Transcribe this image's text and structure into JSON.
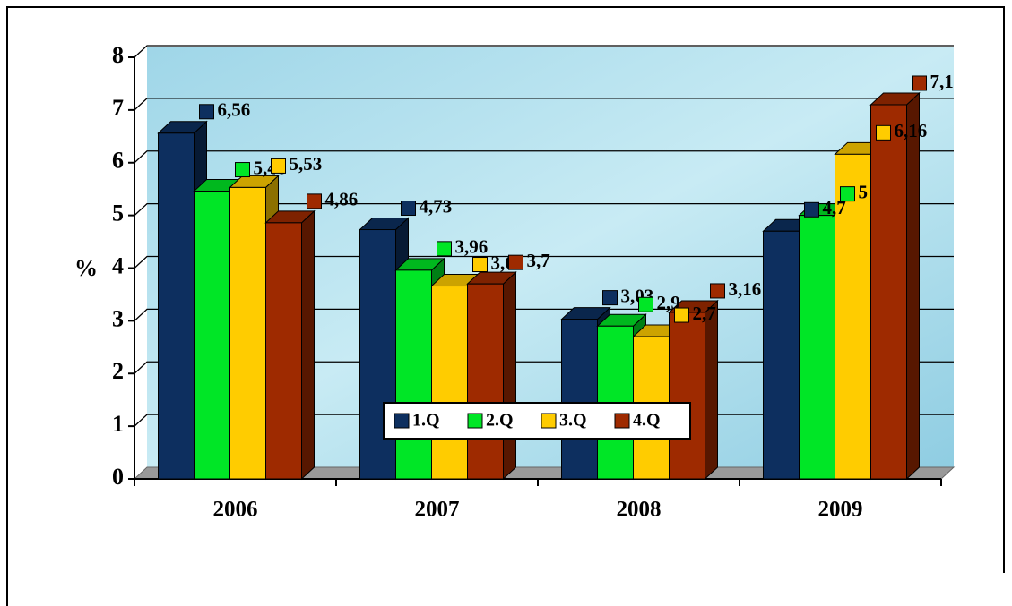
{
  "chart_data": {
    "type": "bar3d",
    "y_label": "%",
    "categories": [
      "2006",
      "2007",
      "2008",
      "2009"
    ],
    "series": [
      {
        "name": "1.Q",
        "color": "#0d2f5f",
        "values": [
          6.56,
          4.73,
          3.03,
          4.7
        ],
        "value_labels": [
          "6,56",
          "4,73",
          "3,03",
          "4,7"
        ]
      },
      {
        "name": "2.Q",
        "color": "#00e626",
        "values": [
          5.46,
          3.96,
          2.9,
          5
        ],
        "value_labels": [
          "5,46",
          "3,96",
          "2,9",
          "5"
        ]
      },
      {
        "name": "3.Q",
        "color": "#ffcc00",
        "values": [
          5.53,
          3.66,
          2.7,
          6.16
        ],
        "value_labels": [
          "5,53",
          "3,66",
          "2,7",
          "6,16"
        ]
      },
      {
        "name": "4.Q",
        "color": "#9e2a00",
        "values": [
          4.86,
          3.7,
          3.16,
          7.1
        ],
        "value_labels": [
          "4,86",
          "3,7",
          "3,16",
          "7,1"
        ]
      }
    ],
    "ylim": [
      0,
      8
    ],
    "yticks": [
      0,
      1,
      2,
      3,
      4,
      5,
      6,
      7,
      8
    ],
    "grid": true,
    "legend": "bottom"
  }
}
